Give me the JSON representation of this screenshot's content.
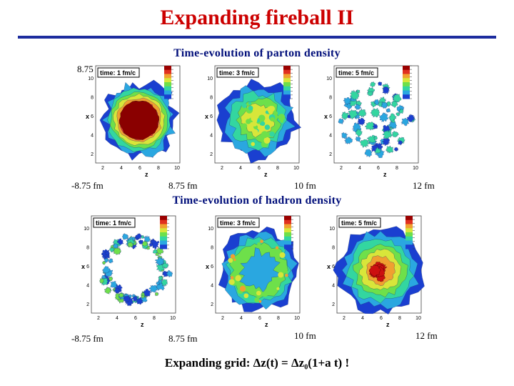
{
  "slide": {
    "title": "Expanding fireball II",
    "formula": "Expanding grid: Δz(t) = Δz₀(1+a t) !",
    "accent_color": "#cc0000",
    "rule_color": "#1c2c9e"
  },
  "parton": {
    "heading": "Time-evolution of parton density",
    "scale_top": "8.75 fm",
    "scale_left": "-8.75 fm",
    "scale_mid": "8.75 fm",
    "scale_right1": "10 fm",
    "scale_right2": "12 fm",
    "panels": [
      {
        "time_label": "time: 1 fm/c",
        "x_ticks": [
          "2",
          "4",
          "6",
          "8",
          "10"
        ],
        "y_ticks": [
          "10",
          "8",
          "6",
          "4",
          "2"
        ],
        "axis_y": "x",
        "axis_x": "z"
      },
      {
        "time_label": "time: 3 fm/c",
        "x_ticks": [
          "2",
          "4",
          "6",
          "8",
          "10"
        ],
        "y_ticks": [
          "10",
          "8",
          "6",
          "4",
          "2"
        ],
        "axis_y": "x",
        "axis_x": "z"
      },
      {
        "time_label": "time: 5 fm/c",
        "x_ticks": [
          "2",
          "4",
          "6",
          "8",
          "10"
        ],
        "y_ticks": [
          "10",
          "8",
          "6",
          "4",
          "2"
        ],
        "axis_y": "x",
        "axis_x": "z"
      }
    ]
  },
  "hadron": {
    "heading": "Time-evolution of hadron density",
    "scale_left": "-8.75 fm",
    "scale_mid": "8.75 fm",
    "scale_right1": "10 fm",
    "scale_right2": "12 fm",
    "panels": [
      {
        "time_label": "time: 1 fm/c",
        "x_ticks": [
          "2",
          "4",
          "6",
          "8",
          "10"
        ],
        "y_ticks": [
          "10",
          "8",
          "6",
          "4",
          "2"
        ],
        "axis_y": "x",
        "axis_x": "z"
      },
      {
        "time_label": "time: 3 fm/c",
        "x_ticks": [
          "2",
          "4",
          "6",
          "8",
          "10"
        ],
        "y_ticks": [
          "10",
          "8",
          "6",
          "4",
          "2"
        ],
        "axis_y": "x",
        "axis_x": "z"
      },
      {
        "time_label": "time: 5 fm/c",
        "x_ticks": [
          "2",
          "4",
          "6",
          "8",
          "10"
        ],
        "y_ticks": [
          "10",
          "8",
          "6",
          "4",
          "2"
        ],
        "axis_y": "x",
        "axis_x": "z"
      }
    ]
  }
}
